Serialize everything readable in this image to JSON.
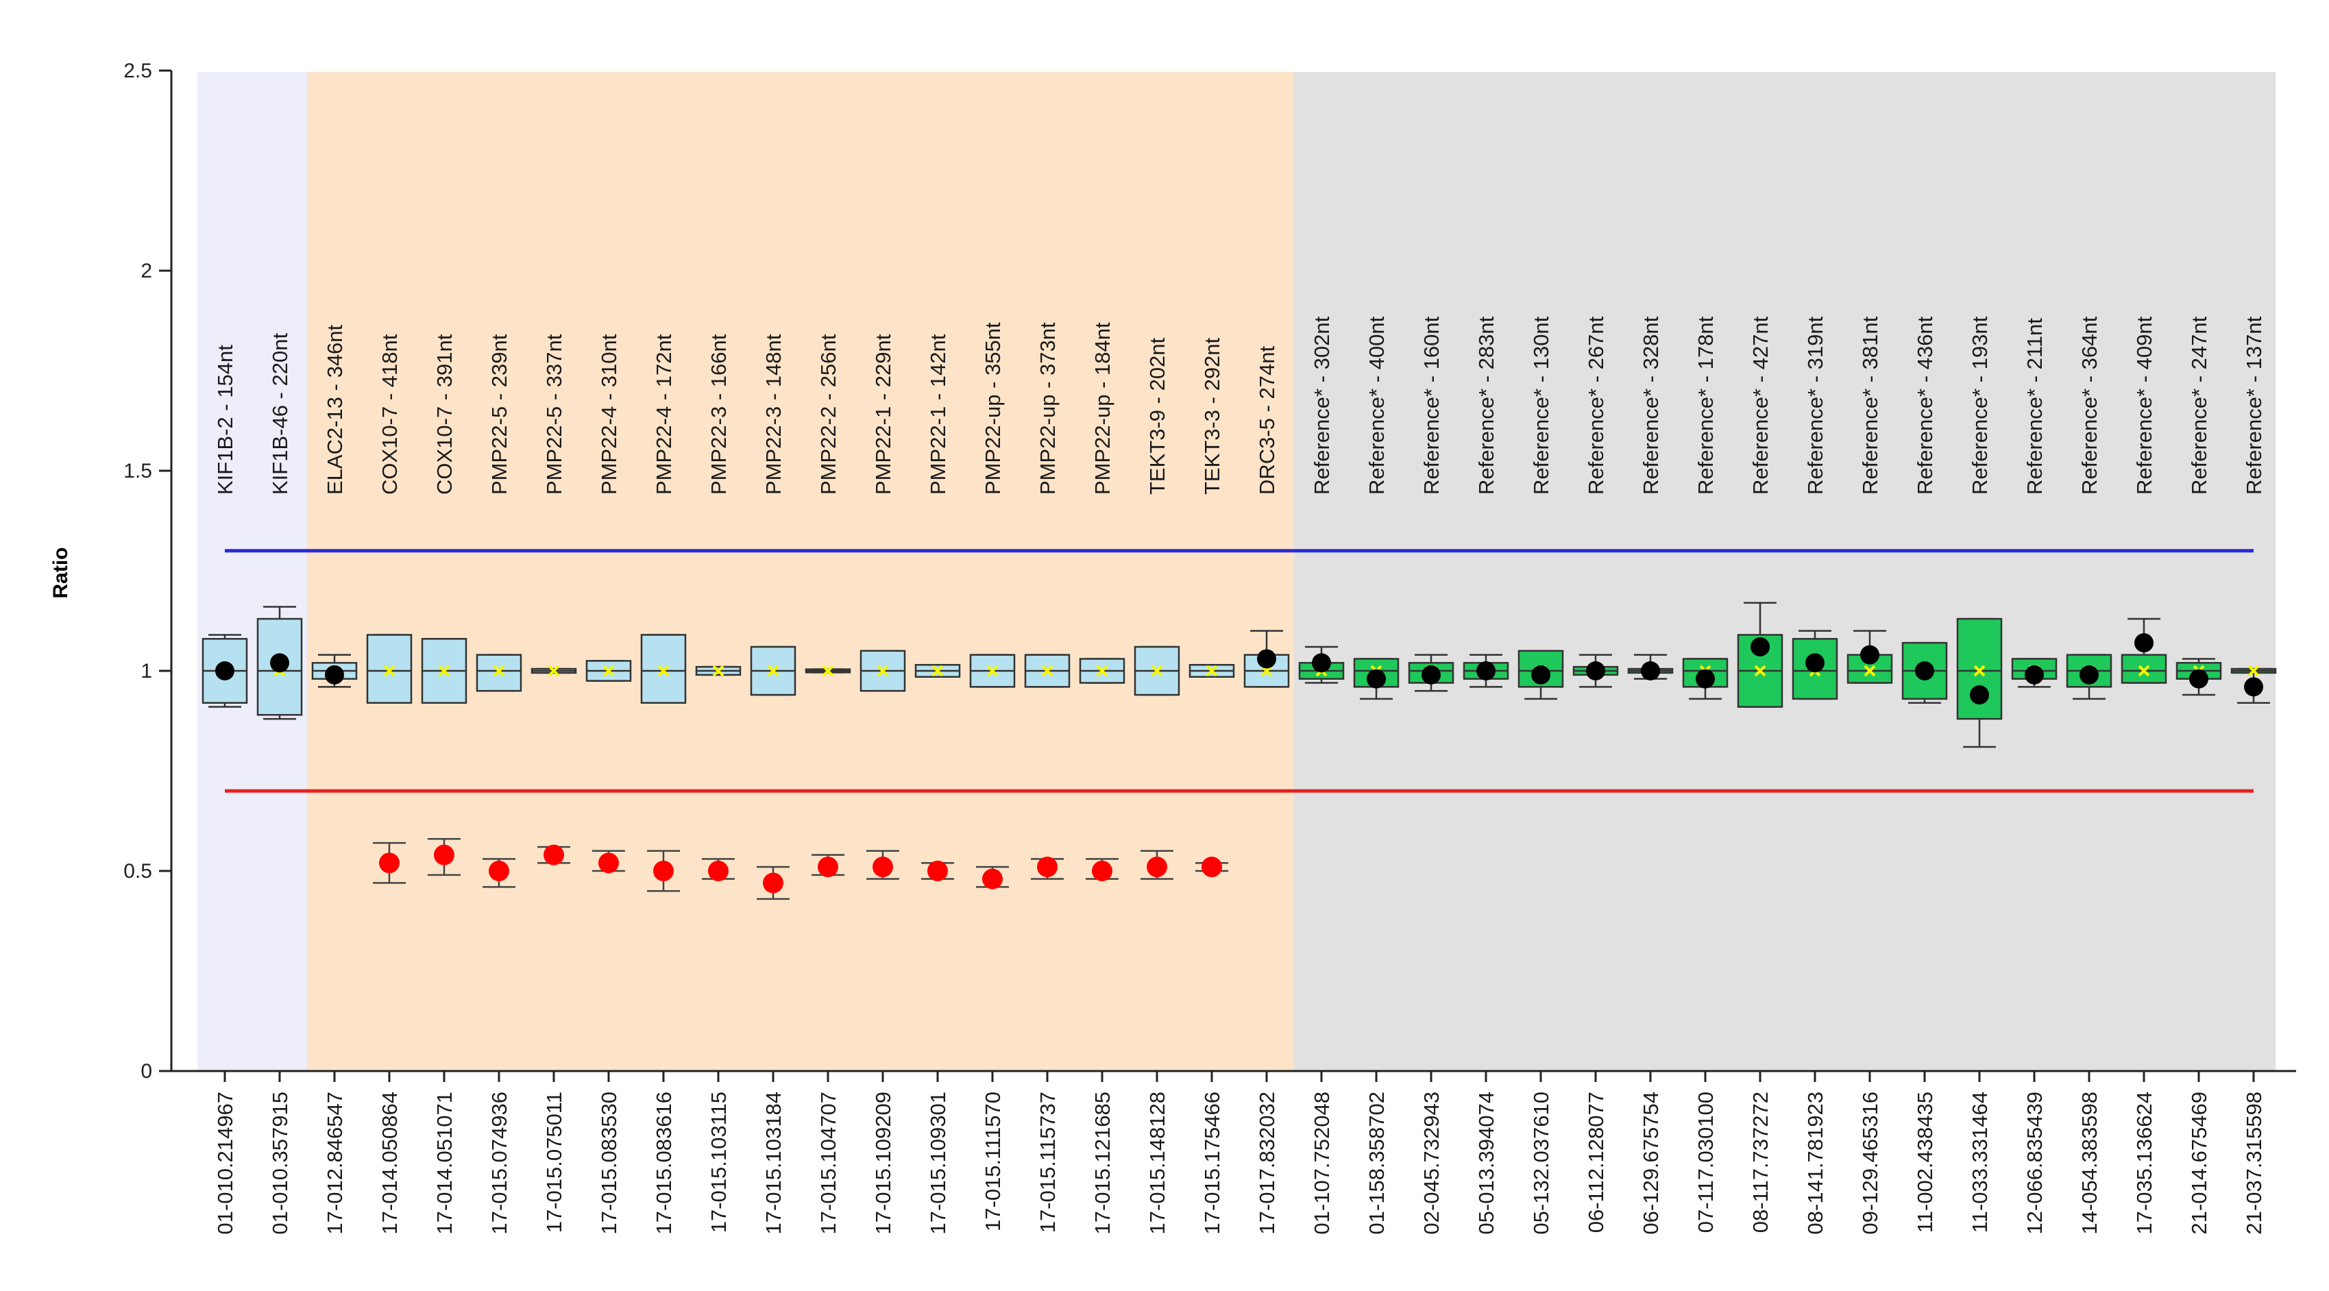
{
  "chart_data": {
    "type": "box-plot",
    "ylabel": "Ratio",
    "ylim": [
      0,
      2.5
    ],
    "yticks": [
      {
        "value": 0,
        "label": "0"
      },
      {
        "value": 0.5,
        "label": "0.5"
      },
      {
        "value": 1,
        "label": "1"
      },
      {
        "value": 1.5,
        "label": "1.5"
      },
      {
        "value": 2,
        "label": "2"
      },
      {
        "value": 2.5,
        "label": "2.5"
      }
    ],
    "upper_threshold": 1.3,
    "lower_threshold": 0.7,
    "threshold_colors": {
      "upper": "#2a2ad6",
      "lower": "#e82020"
    },
    "regions": [
      {
        "name": "KIF1B",
        "from": 0,
        "to": 1,
        "color": "#eeeefb"
      },
      {
        "name": "target",
        "from": 2,
        "to": 19,
        "color": "#fde4c9"
      },
      {
        "name": "reference",
        "from": 20,
        "to": 37,
        "color": "#e1e1e1"
      }
    ],
    "colors": {
      "blue_box": "#b6e1f0",
      "green_box": "#1fc85a",
      "median_marker": "#f6f600",
      "sample_point": "#000000",
      "deleted_point": "#ff0000"
    },
    "probes": [
      {
        "label": "KIF1B-2 - 154nt",
        "x_label": "01-010.214967",
        "box": "blue",
        "q1": 0.92,
        "q3": 1.08,
        "wlow": 0.91,
        "whigh": 1.09,
        "median": 1.0,
        "point": 1.0,
        "deleted": null
      },
      {
        "label": "KIF1B-46 - 220nt",
        "x_label": "01-010.357915",
        "box": "blue",
        "q1": 0.89,
        "q3": 1.13,
        "wlow": 0.88,
        "whigh": 1.16,
        "median": 1.0,
        "point": 1.02,
        "deleted": null
      },
      {
        "label": "ELAC2-13 - 346nt",
        "x_label": "17-012.846547",
        "box": "blue",
        "q1": 0.98,
        "q3": 1.02,
        "wlow": 0.96,
        "whigh": 1.04,
        "median": 1.0,
        "point": 0.99,
        "deleted": null
      },
      {
        "label": "COX10-7 - 418nt",
        "x_label": "17-014.050864",
        "box": "blue",
        "q1": 0.92,
        "q3": 1.09,
        "wlow": 0.92,
        "whigh": 1.09,
        "median": 1.0,
        "point": null,
        "deleted": {
          "value": 0.52,
          "low": 0.47,
          "high": 0.57
        }
      },
      {
        "label": "COX10-7 - 391nt",
        "x_label": "17-014.051071",
        "box": "blue",
        "q1": 0.92,
        "q3": 1.08,
        "wlow": 0.92,
        "whigh": 1.08,
        "median": 1.0,
        "point": null,
        "deleted": {
          "value": 0.54,
          "low": 0.49,
          "high": 0.58
        }
      },
      {
        "label": "PMP22-5 - 239nt",
        "x_label": "17-015.074936",
        "box": "blue",
        "q1": 0.95,
        "q3": 1.04,
        "wlow": 0.95,
        "whigh": 1.04,
        "median": 1.0,
        "point": null,
        "deleted": {
          "value": 0.5,
          "low": 0.46,
          "high": 0.53
        }
      },
      {
        "label": "PMP22-5 - 337nt",
        "x_label": "17-015.075011",
        "box": "blue",
        "q1": 0.995,
        "q3": 1.005,
        "wlow": 0.995,
        "whigh": 1.005,
        "median": 1.0,
        "point": null,
        "deleted": {
          "value": 0.54,
          "low": 0.52,
          "high": 0.56
        }
      },
      {
        "label": "PMP22-4 - 310nt",
        "x_label": "17-015.083530",
        "box": "blue",
        "q1": 0.975,
        "q3": 1.025,
        "wlow": 0.975,
        "whigh": 1.025,
        "median": 1.0,
        "point": null,
        "deleted": {
          "value": 0.52,
          "low": 0.5,
          "high": 0.55
        }
      },
      {
        "label": "PMP22-4 - 172nt",
        "x_label": "17-015.083616",
        "box": "blue",
        "q1": 0.92,
        "q3": 1.09,
        "wlow": 0.92,
        "whigh": 1.09,
        "median": 1.0,
        "point": null,
        "deleted": {
          "value": 0.5,
          "low": 0.45,
          "high": 0.55
        }
      },
      {
        "label": "PMP22-3 - 166nt",
        "x_label": "17-015.103115",
        "box": "blue",
        "q1": 0.99,
        "q3": 1.01,
        "wlow": 0.99,
        "whigh": 1.01,
        "median": 1.0,
        "point": null,
        "deleted": {
          "value": 0.5,
          "low": 0.48,
          "high": 0.53
        }
      },
      {
        "label": "PMP22-3 - 148nt",
        "x_label": "17-015.103184",
        "box": "blue",
        "q1": 0.94,
        "q3": 1.06,
        "wlow": 0.94,
        "whigh": 1.06,
        "median": 1.0,
        "point": null,
        "deleted": {
          "value": 0.47,
          "low": 0.43,
          "high": 0.51
        }
      },
      {
        "label": "PMP22-2 - 256nt",
        "x_label": "17-015.104707",
        "box": "blue",
        "q1": 0.996,
        "q3": 1.004,
        "wlow": 0.996,
        "whigh": 1.004,
        "median": 1.0,
        "point": null,
        "deleted": {
          "value": 0.51,
          "low": 0.49,
          "high": 0.54
        }
      },
      {
        "label": "PMP22-1 - 229nt",
        "x_label": "17-015.109209",
        "box": "blue",
        "q1": 0.95,
        "q3": 1.05,
        "wlow": 0.95,
        "whigh": 1.05,
        "median": 1.0,
        "point": null,
        "deleted": {
          "value": 0.51,
          "low": 0.48,
          "high": 0.55
        }
      },
      {
        "label": "PMP22-1 - 142nt",
        "x_label": "17-015.109301",
        "box": "blue",
        "q1": 0.985,
        "q3": 1.015,
        "wlow": 0.985,
        "whigh": 1.015,
        "median": 1.0,
        "point": null,
        "deleted": {
          "value": 0.5,
          "low": 0.48,
          "high": 0.52
        }
      },
      {
        "label": "PMP22-up - 355nt",
        "x_label": "17-015.111570",
        "box": "blue",
        "q1": 0.96,
        "q3": 1.04,
        "wlow": 0.96,
        "whigh": 1.04,
        "median": 1.0,
        "point": null,
        "deleted": {
          "value": 0.48,
          "low": 0.46,
          "high": 0.51
        }
      },
      {
        "label": "PMP22-up - 373nt",
        "x_label": "17-015.115737",
        "box": "blue",
        "q1": 0.96,
        "q3": 1.04,
        "wlow": 0.96,
        "whigh": 1.04,
        "median": 1.0,
        "point": null,
        "deleted": {
          "value": 0.51,
          "low": 0.48,
          "high": 0.53
        }
      },
      {
        "label": "PMP22-up - 184nt",
        "x_label": "17-015.121685",
        "box": "blue",
        "q1": 0.97,
        "q3": 1.03,
        "wlow": 0.97,
        "whigh": 1.03,
        "median": 1.0,
        "point": null,
        "deleted": {
          "value": 0.5,
          "low": 0.48,
          "high": 0.53
        }
      },
      {
        "label": "TEKT3-9 - 202nt",
        "x_label": "17-015.148128",
        "box": "blue",
        "q1": 0.94,
        "q3": 1.06,
        "wlow": 0.94,
        "whigh": 1.06,
        "median": 1.0,
        "point": null,
        "deleted": {
          "value": 0.51,
          "low": 0.48,
          "high": 0.55
        }
      },
      {
        "label": "TEKT3-3 - 292nt",
        "x_label": "17-015.175466",
        "box": "blue",
        "q1": 0.985,
        "q3": 1.015,
        "wlow": 0.985,
        "whigh": 1.015,
        "median": 1.0,
        "point": null,
        "deleted": {
          "value": 0.51,
          "low": 0.5,
          "high": 0.52
        }
      },
      {
        "label": "DRC3-5 - 274nt",
        "x_label": "17-017.832032",
        "box": "blue",
        "q1": 0.96,
        "q3": 1.04,
        "wlow": 0.96,
        "whigh": 1.1,
        "median": 1.0,
        "point": 1.03,
        "deleted": null
      },
      {
        "label": "Reference* - 302nt",
        "x_label": "01-107.752048",
        "box": "green",
        "q1": 0.98,
        "q3": 1.02,
        "wlow": 0.97,
        "whigh": 1.06,
        "median": 1.0,
        "point": 1.02,
        "deleted": null
      },
      {
        "label": "Reference* - 400nt",
        "x_label": "01-158.358702",
        "box": "green",
        "q1": 0.96,
        "q3": 1.03,
        "wlow": 0.93,
        "whigh": 1.03,
        "median": 1.0,
        "point": 0.98,
        "deleted": null
      },
      {
        "label": "Reference* - 160nt",
        "x_label": "02-045.732943",
        "box": "green",
        "q1": 0.97,
        "q3": 1.02,
        "wlow": 0.95,
        "whigh": 1.04,
        "median": 1.0,
        "point": 0.99,
        "deleted": null
      },
      {
        "label": "Reference* - 283nt",
        "x_label": "05-013.394074",
        "box": "green",
        "q1": 0.98,
        "q3": 1.02,
        "wlow": 0.96,
        "whigh": 1.04,
        "median": 1.0,
        "point": 1.0,
        "deleted": null
      },
      {
        "label": "Reference* - 130nt",
        "x_label": "05-132.037610",
        "box": "green",
        "q1": 0.96,
        "q3": 1.05,
        "wlow": 0.93,
        "whigh": 1.05,
        "median": 1.0,
        "point": 0.99,
        "deleted": null
      },
      {
        "label": "Reference* - 267nt",
        "x_label": "06-112.128077",
        "box": "green",
        "q1": 0.99,
        "q3": 1.01,
        "wlow": 0.96,
        "whigh": 1.04,
        "median": 1.0,
        "point": 1.0,
        "deleted": null
      },
      {
        "label": "Reference* - 328nt",
        "x_label": "06-129.675754",
        "box": "green",
        "q1": 0.995,
        "q3": 1.005,
        "wlow": 0.98,
        "whigh": 1.04,
        "median": 1.0,
        "point": 1.0,
        "deleted": null
      },
      {
        "label": "Reference* - 178nt",
        "x_label": "07-117.030100",
        "box": "green",
        "q1": 0.96,
        "q3": 1.03,
        "wlow": 0.93,
        "whigh": 1.03,
        "median": 1.0,
        "point": 0.98,
        "deleted": null
      },
      {
        "label": "Reference* - 427nt",
        "x_label": "08-117.737272",
        "box": "green",
        "q1": 0.91,
        "q3": 1.09,
        "wlow": 0.91,
        "whigh": 1.17,
        "median": 1.0,
        "point": 1.06,
        "deleted": null
      },
      {
        "label": "Reference* - 319nt",
        "x_label": "08-141.781923",
        "box": "green",
        "q1": 0.93,
        "q3": 1.08,
        "wlow": 0.93,
        "whigh": 1.1,
        "median": 1.0,
        "point": 1.02,
        "deleted": null
      },
      {
        "label": "Reference* - 381nt",
        "x_label": "09-129.465316",
        "box": "green",
        "q1": 0.97,
        "q3": 1.04,
        "wlow": 0.97,
        "whigh": 1.1,
        "median": 1.0,
        "point": 1.04,
        "deleted": null
      },
      {
        "label": "Reference* - 436nt",
        "x_label": "11-002.438435",
        "box": "green",
        "q1": 0.93,
        "q3": 1.07,
        "wlow": 0.92,
        "whigh": 1.07,
        "median": 1.0,
        "point": 1.0,
        "deleted": null
      },
      {
        "label": "Reference* - 193nt",
        "x_label": "11-033.331464",
        "box": "green",
        "q1": 0.88,
        "q3": 1.13,
        "wlow": 0.81,
        "whigh": 1.13,
        "median": 1.0,
        "point": 0.94,
        "deleted": null
      },
      {
        "label": "Reference* - 211nt",
        "x_label": "12-066.835439",
        "box": "green",
        "q1": 0.98,
        "q3": 1.03,
        "wlow": 0.96,
        "whigh": 1.03,
        "median": 1.0,
        "point": 0.99,
        "deleted": null
      },
      {
        "label": "Reference* - 364nt",
        "x_label": "14-054.383598",
        "box": "green",
        "q1": 0.96,
        "q3": 1.04,
        "wlow": 0.93,
        "whigh": 1.04,
        "median": 1.0,
        "point": 0.99,
        "deleted": null
      },
      {
        "label": "Reference* - 409nt",
        "x_label": "17-035.136624",
        "box": "green",
        "q1": 0.97,
        "q3": 1.04,
        "wlow": 0.97,
        "whigh": 1.13,
        "median": 1.0,
        "point": 1.07,
        "deleted": null
      },
      {
        "label": "Reference* - 247nt",
        "x_label": "21-014.675469",
        "box": "green",
        "q1": 0.98,
        "q3": 1.02,
        "wlow": 0.94,
        "whigh": 1.03,
        "median": 1.0,
        "point": 0.98,
        "deleted": null
      },
      {
        "label": "Reference* - 137nt",
        "x_label": "21-037.315598",
        "box": "green",
        "q1": 0.995,
        "q3": 1.005,
        "wlow": 0.92,
        "whigh": 1.005,
        "median": 1.0,
        "point": 0.96,
        "deleted": null
      }
    ]
  }
}
